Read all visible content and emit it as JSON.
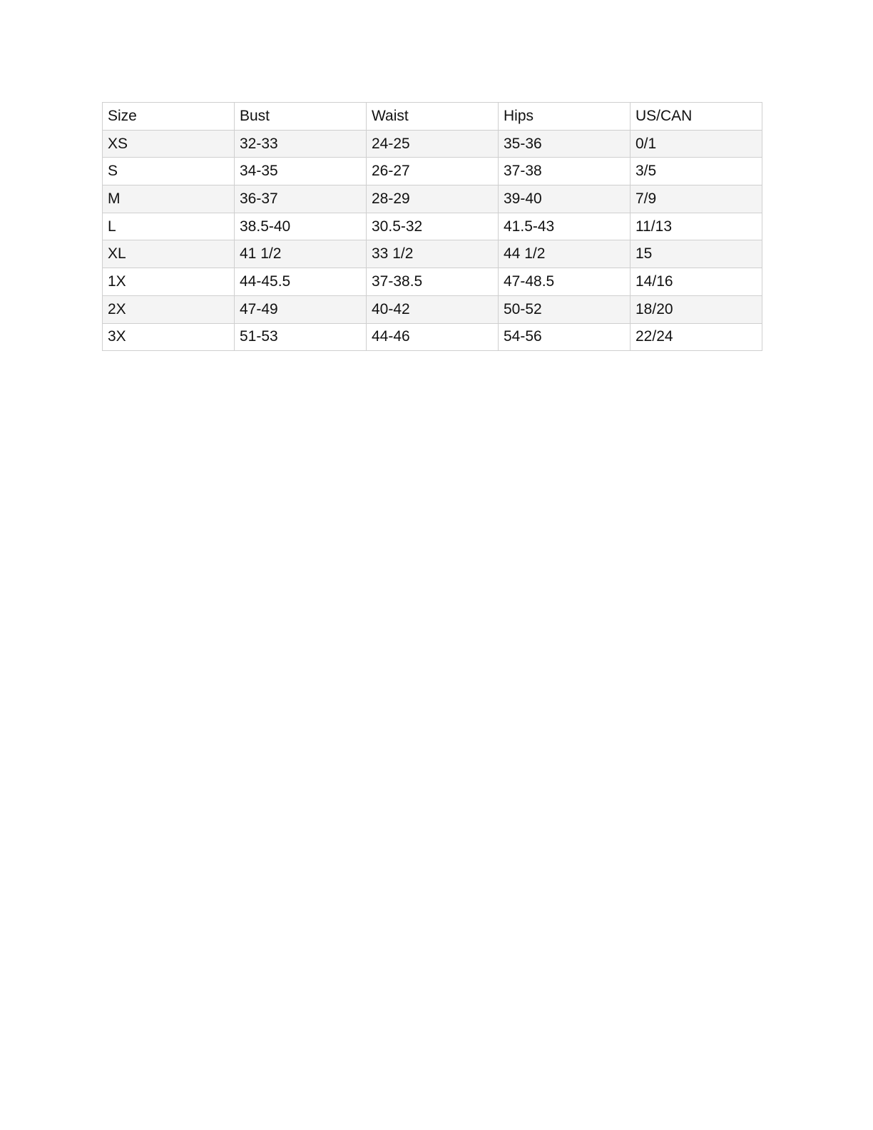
{
  "size_chart": {
    "headers": [
      "Size",
      "Bust",
      "Waist",
      "Hips",
      "US/CAN"
    ],
    "rows": [
      [
        "XS",
        "32-33",
        "24-25",
        "35-36",
        "0/1"
      ],
      [
        "S",
        "34-35",
        "26-27",
        "37-38",
        "3/5"
      ],
      [
        "M",
        "36-37",
        "28-29",
        "39-40",
        "7/9"
      ],
      [
        "L",
        "38.5-40",
        "30.5-32",
        "41.5-43",
        "11/13"
      ],
      [
        "XL",
        "41 1/2",
        "33 1/2",
        "44 1/2",
        "15"
      ],
      [
        "1X",
        "44-45.5",
        "37-38.5",
        "47-48.5",
        "14/16"
      ],
      [
        "2X",
        "47-49",
        "40-42",
        "50-52",
        "18/20"
      ],
      [
        "3X",
        "51-53",
        "44-46",
        "54-56",
        "22/24"
      ]
    ]
  }
}
